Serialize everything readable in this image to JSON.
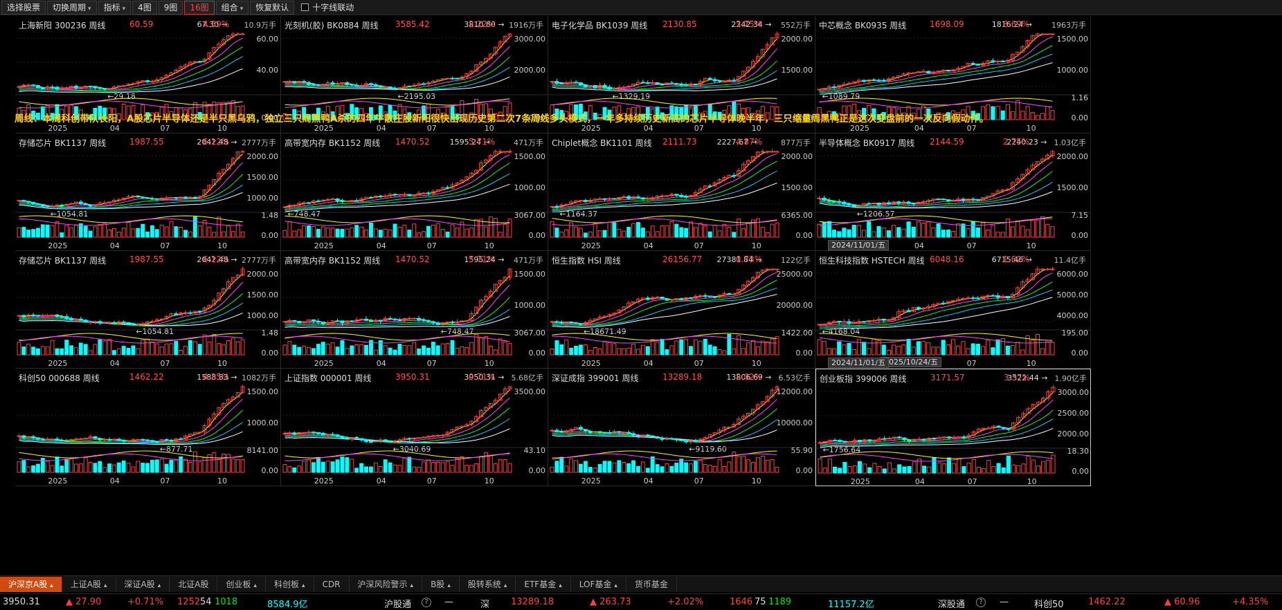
{
  "toolbar": {
    "items": [
      {
        "label": "选择股票",
        "caret": false,
        "active": false,
        "name": "select-stock"
      },
      {
        "label": "切换周期",
        "caret": true,
        "active": false,
        "name": "switch-period"
      },
      {
        "label": "指标",
        "caret": true,
        "active": false,
        "name": "indicator"
      },
      {
        "label": "4图",
        "caret": false,
        "active": false,
        "name": "view-4"
      },
      {
        "label": "9图",
        "caret": false,
        "active": false,
        "name": "view-9"
      },
      {
        "label": "16图",
        "caret": false,
        "active": true,
        "name": "view-16"
      },
      {
        "label": "组合",
        "caret": true,
        "active": false,
        "name": "combo"
      },
      {
        "label": "恢复默认",
        "caret": false,
        "active": false,
        "name": "restore-default"
      }
    ],
    "crosshair": "十字线联动"
  },
  "commentary": "周线：本周科创带队长阳，A股芯片半导体还是半只黑乌鸦，独立三只周黑鸭A杀的四年牛散庄股新阳很快出现历史第二次7条周线多头模式，一年多持续历史新高的芯片半导体晚半年，三只缩量周黑鸭正是这次变盘前的一次反向假动作。",
  "date_tags": [
    "2024/11/01/五",
    "2025/10/24/五",
    "2024/11/01/五"
  ],
  "x_labels": [
    "2025",
    "04",
    "07",
    "10"
  ],
  "colors": {
    "up": "#ff4040",
    "down": "#00ffff",
    "ma5": "#ffffff",
    "ma10": "#ffff00",
    "ma20": "#ff40ff",
    "ma30": "#00ff00",
    "ma60": "#00ccff",
    "ma120": "#ffffff"
  },
  "panels": [
    {
      "name": "上海新阳 300236 周线",
      "price": "60.59",
      "pct": "4.59%",
      "vol": "10.9万手",
      "hi": "67.30",
      "lo": "29.18",
      "axis": [
        "60.00",
        "40.00"
      ],
      "vaxis": [
        "",
        "0.00"
      ],
      "s": 5
    },
    {
      "name": "光刻机(胶) BK0884 周线",
      "price": "3585.42",
      "pct": "2.22%",
      "vol": "1916万手",
      "hi": "3810.80",
      "lo": "2195.03",
      "axis": [
        "3000.00",
        "2000.00"
      ],
      "vaxis": [
        "",
        "0.00"
      ],
      "s": 12
    },
    {
      "name": "电子化学品 BK1039 周线",
      "price": "2130.85",
      "pct": "3.75%",
      "vol": "552万手",
      "hi": "2242.34",
      "lo": "1329.19",
      "axis": [
        "2000.00",
        "1500.00"
      ],
      "vaxis": [
        "",
        "0.00"
      ],
      "s": 23
    },
    {
      "name": "中芯概念 BK0935 周线",
      "price": "1698.09",
      "pct": "3.69%",
      "vol": "1963万手",
      "hi": "1816.24",
      "lo": "1089.79",
      "axis": [
        "1500.00",
        "1000.00"
      ],
      "vaxis": [
        "1.16",
        "0.00"
      ],
      "s": 34
    },
    {
      "name": "存储芯片 BK1137 周线",
      "price": "1987.55",
      "pct": "6.12%",
      "vol": "2777万手",
      "hi": "2042.48",
      "lo": "1054.81",
      "axis": [
        "2000.00",
        "1500.00",
        "1000.00"
      ],
      "vaxis": [
        "1.48",
        "0.00"
      ],
      "s": 45
    },
    {
      "name": "高带宽内存 BK1152 周线",
      "price": "1470.52",
      "pct": "5.71%",
      "vol": "471万手",
      "hi": "1595.24",
      "lo": "748.47",
      "axis": [
        "1500.00",
        "1000.00"
      ],
      "vaxis": [
        "3067.00",
        "0.00"
      ],
      "s": 56
    },
    {
      "name": "Chiplet概念 BK1101 周线",
      "price": "2111.73",
      "pct": "4.87%",
      "vol": "877万手",
      "hi": "2227.67",
      "lo": "1164.37",
      "axis": [
        "2000.00",
        "1500.00"
      ],
      "vaxis": [
        "6365.00",
        "0.00"
      ],
      "s": 67
    },
    {
      "name": "半导体概念 BK0917 周线",
      "price": "2144.59",
      "pct": "2.75%",
      "vol": "1.03亿手",
      "hi": "2240.23",
      "lo": "1206.57",
      "axis": [
        "2000.00",
        "1500.00"
      ],
      "vaxis": [
        "7.15",
        "0.00"
      ],
      "s": 78
    },
    {
      "name": "存储芯片 BK1137 周线",
      "price": "1987.55",
      "pct": "6.12%",
      "vol": "2777万手",
      "hi": "2042.48",
      "lo": "1054.81",
      "axis": [
        "2000.00",
        "1500.00",
        "1000.00"
      ],
      "vaxis": [
        "1.48",
        "0.00"
      ],
      "s": 45
    },
    {
      "name": "高带宽内存 BK1152 周线",
      "price": "1470.52",
      "pct": "5.71%",
      "vol": "471万手",
      "hi": "1595.24",
      "lo": "748.47",
      "axis": [
        "1500.00",
        "1000.00"
      ],
      "vaxis": [
        "3067.00",
        "0.00"
      ],
      "s": 56
    },
    {
      "name": "恒生指数 HSI 周线",
      "price": "26156.77",
      "pct": "0.73%",
      "vol": "122亿手",
      "hi": "27381.84",
      "lo": "18671.49",
      "axis": [
        "25000.00",
        "20000.00"
      ],
      "vaxis": [
        "1422.00",
        "0.00"
      ],
      "s": 89
    },
    {
      "name": "恒生科技指数 HSTECH 周线",
      "price": "6048.16",
      "pct": "1.62%",
      "vol": "11.4亿手",
      "hi": "6715.46",
      "lo": "4168.04",
      "axis": [
        "6000.00",
        "5000.00",
        "4000.00"
      ],
      "vaxis": [
        "195.00",
        "0.00"
      ],
      "s": 91
    },
    {
      "name": "科创50 000688 周线",
      "price": "1462.22",
      "pct": "4.35%",
      "vol": "1082万手",
      "hi": "1588.83",
      "lo": "877.71",
      "axis": [
        "1500.00",
        "1000.00"
      ],
      "vaxis": [
        "8141.00",
        "0.00"
      ],
      "s": 101
    },
    {
      "name": "上证指数 000001 周线",
      "price": "3950.31",
      "pct": "0.71%",
      "vol": "5.68亿手",
      "hi": "3950.31",
      "lo": "3040.69",
      "axis": [
        "3500.00"
      ],
      "vaxis": [
        "43.10",
        "0.00"
      ],
      "s": 112
    },
    {
      "name": "深证成指 399001 周线",
      "price": "13289.18",
      "pct": "2.02%",
      "vol": "6.53亿手",
      "hi": "13806.69",
      "lo": "9119.60",
      "axis": [
        "12000.00",
        "10000.00"
      ],
      "vaxis": [
        "55.90",
        "0.00"
      ],
      "s": 123
    },
    {
      "name": "创业板指 399006 周线",
      "price": "3171.57",
      "pct": "3.57%",
      "vol": "1.90亿手",
      "hi": "3322.44",
      "lo": "1756.64",
      "axis": [
        "3000.00",
        "2500.00",
        "2000.00"
      ],
      "vaxis": [
        "18.30",
        "0.00"
      ],
      "s": 134
    }
  ],
  "tabs": [
    {
      "label": "沪深京A股",
      "caret": true,
      "active": true
    },
    {
      "label": "上证A股",
      "caret": true
    },
    {
      "label": "深证A股",
      "caret": true
    },
    {
      "label": "北证A股",
      "caret": false
    },
    {
      "label": "创业板",
      "caret": true
    },
    {
      "label": "科创板",
      "caret": true
    },
    {
      "label": "CDR",
      "caret": false
    },
    {
      "label": "沪深风险警示",
      "caret": true
    },
    {
      "label": "B股",
      "caret": true
    },
    {
      "label": "股转系统",
      "caret": true
    },
    {
      "label": "ETF基金",
      "caret": true
    },
    {
      "label": "LOF基金",
      "caret": true
    },
    {
      "label": "货币基金",
      "caret": false
    }
  ],
  "status": {
    "sh_idx": "3950.31",
    "sh_chg": "▲ 27.90",
    "sh_pct": "+0.71%",
    "sh_up": "1252",
    "sh_flat": "54",
    "sh_down": "1018",
    "sh_amt": "8584.9亿",
    "hgt": "沪股通",
    "hgt_icon": "?",
    "hgt_val": "—",
    "sz_label": "深",
    "sz_idx": "13289.18",
    "sz_chg": "▲ 263.73",
    "sz_pct": "+2.02%",
    "sz_up": "1646",
    "sz_flat": "75",
    "sz_down": "1189",
    "sz_amt": "11157.2亿",
    "sgt": "深股通",
    "sgt_icon": "?",
    "sgt_val": "—",
    "kc_label": "科创50",
    "kc_idx": "1462.22",
    "kc_chg": "▲ 60.96",
    "kc_pct": "+4.35%"
  }
}
